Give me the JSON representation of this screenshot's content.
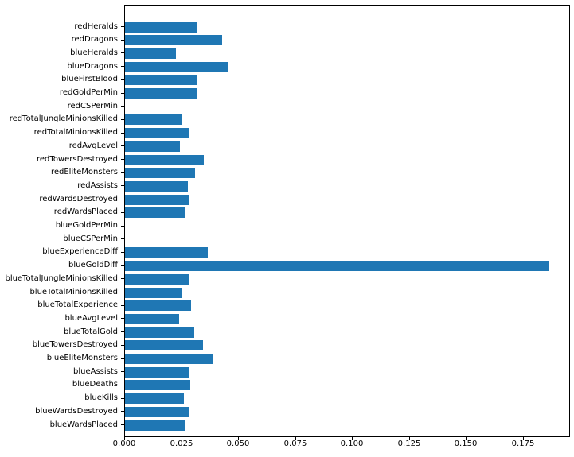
{
  "chart_data": {
    "type": "bar",
    "orientation": "horizontal",
    "bar_color": "#1f77b4",
    "grid": false,
    "legend": null,
    "xlim": [
      0,
      0.1951
    ],
    "xtick_values": [
      0.0,
      0.025,
      0.05,
      0.075,
      0.1,
      0.125,
      0.15,
      0.175
    ],
    "xtick_labels": [
      "0.000",
      "0.025",
      "0.050",
      "0.075",
      "0.100",
      "0.125",
      "0.150",
      "0.175"
    ],
    "categories": [
      "redHeralds",
      "redDragons",
      "blueHeralds",
      "blueDragons",
      "blueFirstBlood",
      "redGoldPerMin",
      "redCSPerMin",
      "redTotalJungleMinionsKilled",
      "redTotalMinionsKilled",
      "redAvgLevel",
      "redTowersDestroyed",
      "redEliteMonsters",
      "redAssists",
      "redWardsDestroyed",
      "redWardsPlaced",
      "blueGoldPerMin",
      "blueCSPerMin",
      "blueExperienceDiff",
      "blueGoldDiff",
      "blueTotalJungleMinionsKilled",
      "blueTotalMinionsKilled",
      "blueTotalExperience",
      "blueAvgLevel",
      "blueTotalGold",
      "blueTowersDestroyed",
      "blueEliteMonsters",
      "blueAssists",
      "blueDeaths",
      "blueKills",
      "blueWardsDestroyed",
      "blueWardsPlaced"
    ],
    "values": [
      0.0314,
      0.0427,
      0.0224,
      0.0453,
      0.0317,
      0.0314,
      0.0,
      0.0251,
      0.028,
      0.0241,
      0.0345,
      0.0308,
      0.0275,
      0.028,
      0.0267,
      0.0,
      0.0,
      0.0364,
      0.1859,
      0.0283,
      0.0251,
      0.0289,
      0.0238,
      0.0304,
      0.0342,
      0.0385,
      0.0283,
      0.0286,
      0.0258,
      0.0283,
      0.0263
    ]
  }
}
